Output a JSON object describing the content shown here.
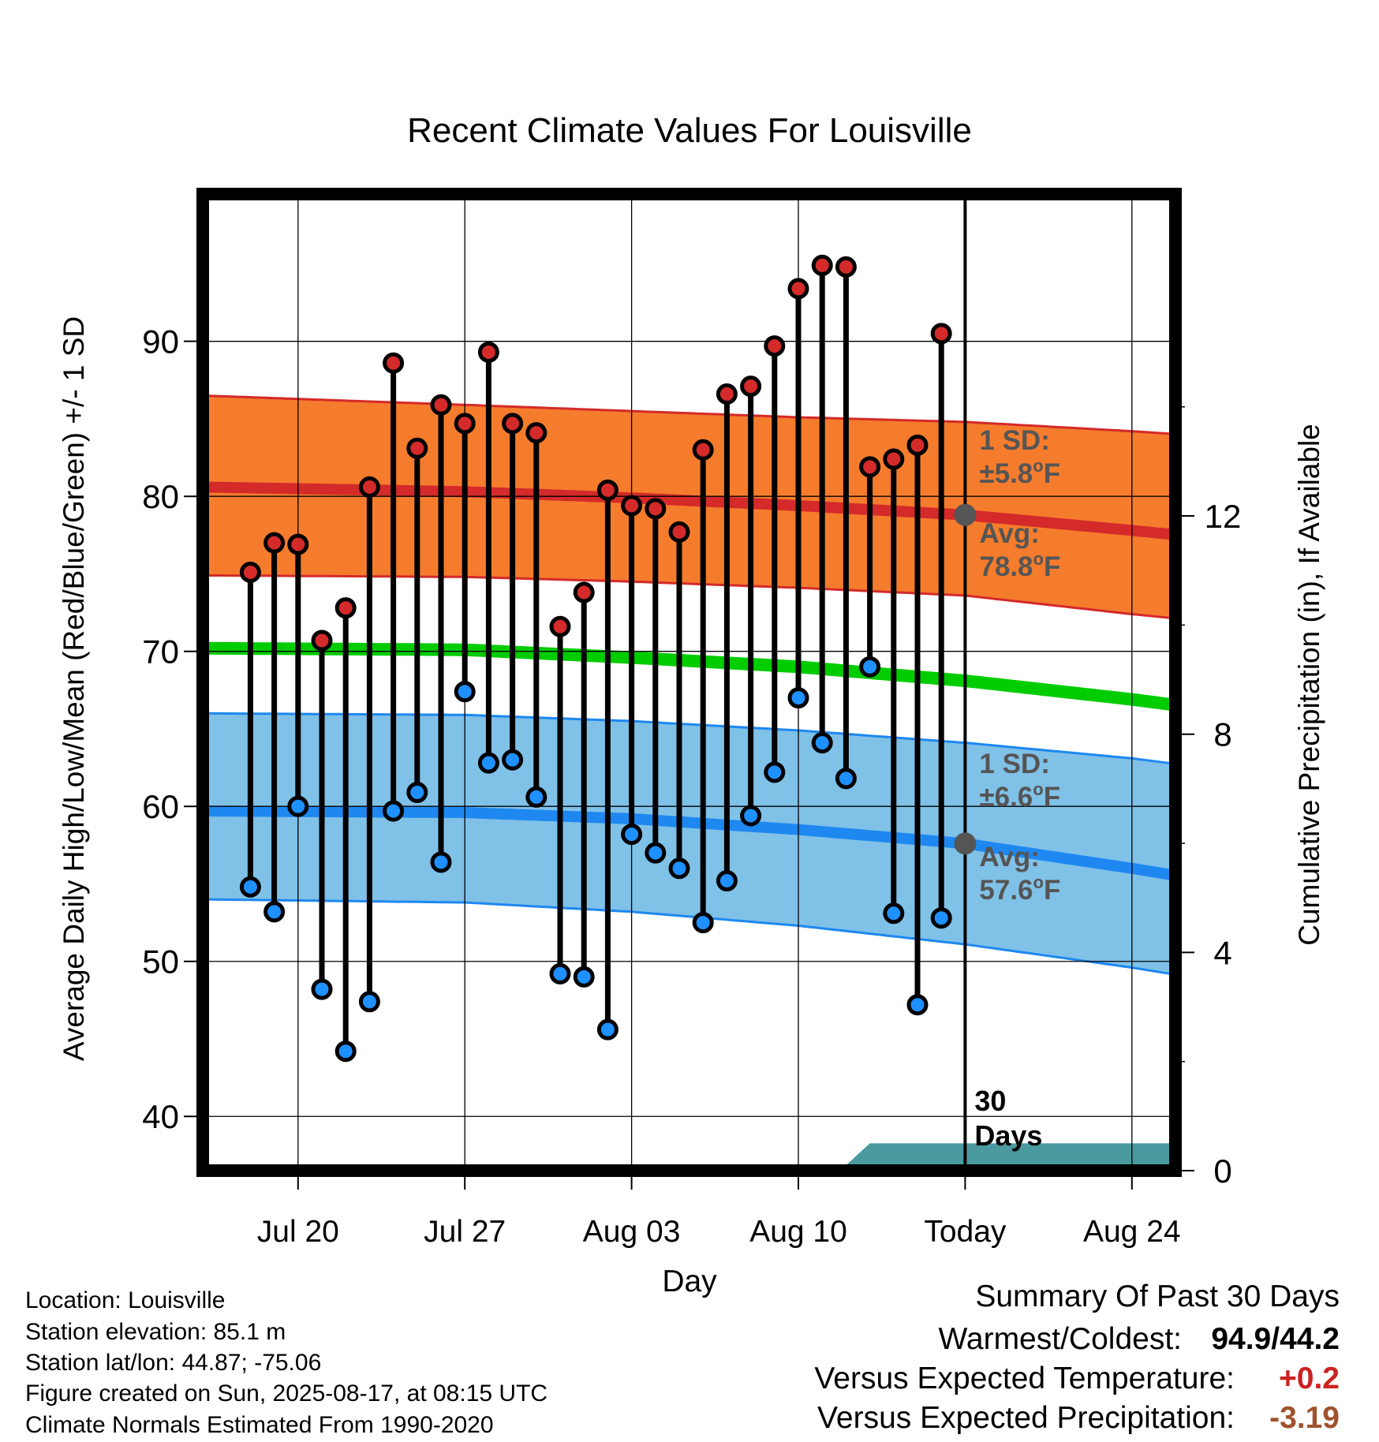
{
  "chart_data": {
    "type": "line",
    "title": "Recent Climate Values For Louisville",
    "xlabel": "Day",
    "ylabel": "Average Daily High/Low/Mean (Red/Blue/Green) +/- 1 SD",
    "y2label": "Cumulative Precipitation (in), If Available",
    "ylim": [
      36.5,
      99.5
    ],
    "y2lim": [
      0,
      17.9
    ],
    "yticks": [
      40,
      50,
      60,
      70,
      80,
      90
    ],
    "y2ticks": [
      0,
      4,
      8,
      12
    ],
    "xlim": [
      "2025-07-16",
      "2025-08-26"
    ],
    "xticks": [
      {
        "date": "2025-07-20",
        "label": "Jul 20"
      },
      {
        "date": "2025-07-27",
        "label": "Jul 27"
      },
      {
        "date": "2025-08-03",
        "label": "Aug 03"
      },
      {
        "date": "2025-08-10",
        "label": "Aug 10"
      },
      {
        "date": "2025-08-17",
        "label": "Today"
      },
      {
        "date": "2025-08-24",
        "label": "Aug 24"
      }
    ],
    "grid": true,
    "today": "2025-08-17",
    "today_label": "30\nDays",
    "daily": [
      {
        "date": "2025-07-18",
        "high": 75.1,
        "low": 54.8
      },
      {
        "date": "2025-07-19",
        "high": 77.0,
        "low": 53.2
      },
      {
        "date": "2025-07-20",
        "high": 76.9,
        "low": 60.0
      },
      {
        "date": "2025-07-21",
        "high": 70.7,
        "low": 48.2
      },
      {
        "date": "2025-07-22",
        "high": 72.8,
        "low": 44.2
      },
      {
        "date": "2025-07-23",
        "high": 80.6,
        "low": 47.4
      },
      {
        "date": "2025-07-24",
        "high": 88.6,
        "low": 59.7
      },
      {
        "date": "2025-07-25",
        "high": 83.1,
        "low": 60.9
      },
      {
        "date": "2025-07-26",
        "high": 85.9,
        "low": 56.4
      },
      {
        "date": "2025-07-27",
        "high": 84.7,
        "low": 67.4
      },
      {
        "date": "2025-07-28",
        "high": 89.3,
        "low": 62.8
      },
      {
        "date": "2025-07-29",
        "high": 84.7,
        "low": 63.0
      },
      {
        "date": "2025-07-30",
        "high": 84.1,
        "low": 60.6
      },
      {
        "date": "2025-07-31",
        "high": 71.6,
        "low": 49.2
      },
      {
        "date": "2025-08-01",
        "high": 73.8,
        "low": 49.0
      },
      {
        "date": "2025-08-02",
        "high": 80.4,
        "low": 45.6
      },
      {
        "date": "2025-08-03",
        "high": 79.4,
        "low": 58.2
      },
      {
        "date": "2025-08-04",
        "high": 79.2,
        "low": 57.0
      },
      {
        "date": "2025-08-05",
        "high": 77.7,
        "low": 56.0
      },
      {
        "date": "2025-08-06",
        "high": 83.0,
        "low": 52.5
      },
      {
        "date": "2025-08-07",
        "high": 86.6,
        "low": 55.2
      },
      {
        "date": "2025-08-08",
        "high": 87.1,
        "low": 59.4
      },
      {
        "date": "2025-08-09",
        "high": 89.7,
        "low": 62.2
      },
      {
        "date": "2025-08-10",
        "high": 93.4,
        "low": 67.0
      },
      {
        "date": "2025-08-11",
        "high": 94.9,
        "low": 64.1
      },
      {
        "date": "2025-08-12",
        "high": 94.8,
        "low": 61.8
      },
      {
        "date": "2025-08-13",
        "high": 81.9,
        "low": 69.0
      },
      {
        "date": "2025-08-14",
        "high": 82.4,
        "low": 53.1
      },
      {
        "date": "2025-08-15",
        "high": 83.3,
        "low": 47.2
      },
      {
        "date": "2025-08-16",
        "high": 90.5,
        "low": 52.8
      }
    ],
    "normals": {
      "dates": [
        "2025-07-16",
        "2025-07-27",
        "2025-08-03",
        "2025-08-10",
        "2025-08-17",
        "2025-08-24",
        "2025-08-26"
      ],
      "high_avg": [
        80.6,
        80.3,
        79.9,
        79.4,
        78.8,
        77.8,
        77.5
      ],
      "high_upper": [
        86.5,
        85.9,
        85.5,
        85.1,
        84.8,
        84.2,
        84.0
      ],
      "high_lower": [
        74.9,
        74.8,
        74.5,
        74.1,
        73.6,
        72.4,
        72.1
      ],
      "mean_avg": [
        70.2,
        70.1,
        69.6,
        69.0,
        68.1,
        66.9,
        66.5
      ],
      "low_avg": [
        59.7,
        59.6,
        59.2,
        58.5,
        57.6,
        56.0,
        55.5
      ],
      "low_upper": [
        66.0,
        65.9,
        65.5,
        64.9,
        64.1,
        63.1,
        62.7
      ],
      "low_lower": [
        54.0,
        53.8,
        53.2,
        52.3,
        51.1,
        49.6,
        49.1
      ]
    },
    "precipitation": {
      "dates": [
        "2025-07-16",
        "2025-07-25",
        "2025-07-26",
        "2025-08-12",
        "2025-08-13",
        "2025-08-26"
      ],
      "values": [
        0.0,
        0.0,
        0.1,
        0.1,
        0.5,
        0.5
      ]
    },
    "annotations": {
      "high_sd_label": "1 SD:",
      "high_sd_value": "±5.8",
      "high_avg_label": "Avg:",
      "high_avg_value": "78.8",
      "low_sd_label": "1 SD:",
      "low_sd_value": "±6.6",
      "low_avg_label": "Avg:",
      "low_avg_value": "57.6",
      "unit": "°F"
    },
    "colors": {
      "high_band": "#f57c2c",
      "high_line": "#d42a2a",
      "low_band": "#80c1e8",
      "low_line": "#1e88f0",
      "mean_line": "#00cc00",
      "precip": "#4a9aa0",
      "high_marker": "#d42a2a",
      "low_marker": "#1e90ff",
      "annotation": "#555555"
    }
  },
  "footer": {
    "location": "Location: Louisville",
    "elevation": "Station elevation: 85.1 m",
    "latlon": "Station lat/lon: 44.87; -75.06",
    "created": "Figure created on Sun, 2025-08-17, at 08:15 UTC",
    "normals": "Climate Normals Estimated From 1990-2020"
  },
  "summary": {
    "title": "Summary Of Past 30 Days",
    "warmest_label": "Warmest/Coldest:",
    "warmest_value": "94.9/44.2",
    "temp_label": "Versus Expected Temperature:",
    "temp_value": "+0.2",
    "precip_label": "Versus Expected Precipitation:",
    "precip_value": "-3.19",
    "temp_color": "#cc2222",
    "precip_color": "#a0522d"
  }
}
